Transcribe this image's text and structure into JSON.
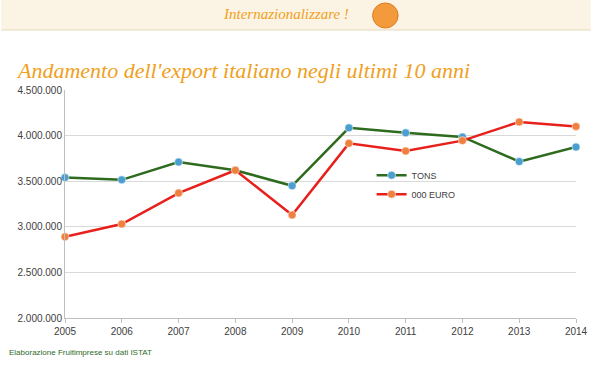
{
  "chart_data": {
    "type": "line",
    "title": "Andamento dell'export italiano negli ultimi 10 anni",
    "header": "Internazionalizzare !",
    "source": "Elaborazione Fruitimprese su dati ISTAT",
    "x": [
      2005,
      2006,
      2007,
      2008,
      2009,
      2010,
      2011,
      2012,
      2013,
      2014
    ],
    "series": [
      {
        "name": "TONS",
        "color": "#2e6b1f",
        "marker": "circle",
        "values": [
          3540000,
          3515000,
          3710000,
          3620000,
          3450000,
          4085000,
          4030000,
          3985000,
          3715000,
          3875000
        ]
      },
      {
        "name": "000 EURO",
        "color": "#e8201c",
        "marker": "circle",
        "values": [
          2890000,
          3030000,
          3370000,
          3620000,
          3130000,
          3915000,
          3830000,
          3945000,
          4150000,
          4100000
        ]
      }
    ],
    "xlim": [
      2005,
      2014
    ],
    "xticks": [
      2005,
      2006,
      2007,
      2008,
      2009,
      2010,
      2011,
      2012,
      2013,
      2014
    ],
    "ylim": [
      2000000,
      4500000
    ],
    "yticks": [
      {
        "value": 2000000,
        "label": "2.000.000"
      },
      {
        "value": 2500000,
        "label": "2.500.000"
      },
      {
        "value": 3000000,
        "label": "3.000.000"
      },
      {
        "value": 3500000,
        "label": "3.500.000"
      },
      {
        "value": 4000000,
        "label": "4.000.000"
      },
      {
        "value": 4500000,
        "label": "4.500.000"
      }
    ],
    "grid": true,
    "legend": "center"
  }
}
